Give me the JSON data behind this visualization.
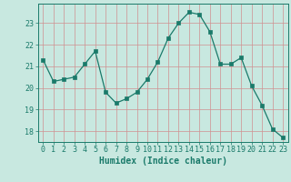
{
  "x": [
    0,
    1,
    2,
    3,
    4,
    5,
    6,
    7,
    8,
    9,
    10,
    11,
    12,
    13,
    14,
    15,
    16,
    17,
    18,
    19,
    20,
    21,
    22,
    23
  ],
  "y": [
    21.3,
    20.3,
    20.4,
    20.5,
    21.1,
    21.7,
    19.8,
    19.3,
    19.5,
    19.8,
    20.4,
    21.2,
    22.3,
    23.0,
    23.5,
    23.4,
    22.6,
    21.1,
    21.1,
    21.4,
    20.1,
    19.2,
    18.1,
    17.7
  ],
  "line_color": "#1a7a6a",
  "marker_color": "#1a7a6a",
  "bg_color": "#c8e8e0",
  "grid_color": "#d09090",
  "axis_color": "#1a7a6a",
  "xlabel": "Humidex (Indice chaleur)",
  "ylim": [
    17.5,
    23.9
  ],
  "yticks": [
    18,
    19,
    20,
    21,
    22,
    23
  ],
  "xticks": [
    0,
    1,
    2,
    3,
    4,
    5,
    6,
    7,
    8,
    9,
    10,
    11,
    12,
    13,
    14,
    15,
    16,
    17,
    18,
    19,
    20,
    21,
    22,
    23
  ],
  "tick_fontsize": 6.0,
  "label_fontsize": 7.0
}
